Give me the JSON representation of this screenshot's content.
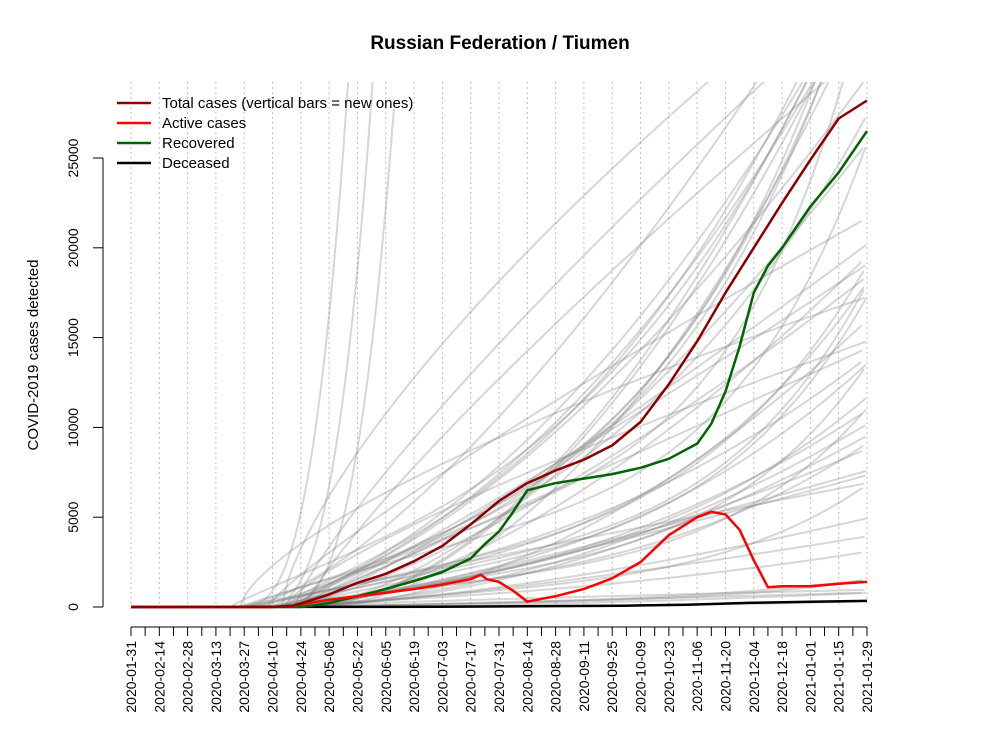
{
  "chart_data": {
    "type": "line",
    "title": "Russian Federation / Tiumen",
    "xlabel": "",
    "ylabel": "COVID-2019 cases detected",
    "x_range": [
      "2020-01-31",
      "2021-01-29"
    ],
    "ylim": [
      0,
      26000
    ],
    "y_ticks": [
      0,
      5000,
      10000,
      15000,
      20000,
      25000
    ],
    "x_tick_labels": [
      "2020-01-31",
      "2020-02-14",
      "2020-02-28",
      "2020-03-13",
      "2020-03-27",
      "2020-04-10",
      "2020-04-24",
      "2020-05-08",
      "2020-05-22",
      "2020-06-05",
      "2020-06-19",
      "2020-07-03",
      "2020-07-17",
      "2020-07-31",
      "2020-08-14",
      "2020-08-28",
      "2020-09-11",
      "2020-09-25",
      "2020-10-09",
      "2020-10-23",
      "2020-11-06",
      "2020-11-20",
      "2020-12-04",
      "2020-12-18",
      "2021-01-01",
      "2021-01-15",
      "2021-01-29"
    ],
    "grid": "vertical dotted lines",
    "legend_position": "top-left",
    "series": [
      {
        "name": "Total cases (vertical bars = new ones)",
        "color": "#8b0000",
        "points": [
          [
            "2020-01-31",
            0
          ],
          [
            "2020-04-10",
            0
          ],
          [
            "2020-04-20",
            80
          ],
          [
            "2020-04-24",
            200
          ],
          [
            "2020-05-08",
            700
          ],
          [
            "2020-05-22",
            1350
          ],
          [
            "2020-06-05",
            1850
          ],
          [
            "2020-06-19",
            2550
          ],
          [
            "2020-07-03",
            3400
          ],
          [
            "2020-07-17",
            4600
          ],
          [
            "2020-07-31",
            5900
          ],
          [
            "2020-08-14",
            6900
          ],
          [
            "2020-08-28",
            7600
          ],
          [
            "2020-09-11",
            8200
          ],
          [
            "2020-09-25",
            9000
          ],
          [
            "2020-10-09",
            10300
          ],
          [
            "2020-10-23",
            12400
          ],
          [
            "2020-11-06",
            14800
          ],
          [
            "2020-11-20",
            17500
          ],
          [
            "2020-12-04",
            20000
          ],
          [
            "2020-12-18",
            22500
          ],
          [
            "2021-01-01",
            24900
          ],
          [
            "2021-01-15",
            27200
          ],
          [
            "2021-01-29",
            28200
          ]
        ]
      },
      {
        "name": "Active cases",
        "color": "#ff0000",
        "points": [
          [
            "2020-01-31",
            0
          ],
          [
            "2020-04-10",
            0
          ],
          [
            "2020-04-20",
            60
          ],
          [
            "2020-04-24",
            150
          ],
          [
            "2020-05-08",
            400
          ],
          [
            "2020-05-22",
            600
          ],
          [
            "2020-06-05",
            800
          ],
          [
            "2020-06-19",
            1000
          ],
          [
            "2020-07-03",
            1250
          ],
          [
            "2020-07-17",
            1550
          ],
          [
            "2020-07-22",
            1800
          ],
          [
            "2020-07-25",
            1550
          ],
          [
            "2020-07-31",
            1400
          ],
          [
            "2020-08-07",
            900
          ],
          [
            "2020-08-14",
            300
          ],
          [
            "2020-08-28",
            600
          ],
          [
            "2020-09-11",
            1000
          ],
          [
            "2020-09-25",
            1600
          ],
          [
            "2020-10-09",
            2500
          ],
          [
            "2020-10-23",
            4000
          ],
          [
            "2020-11-06",
            5000
          ],
          [
            "2020-11-13",
            5300
          ],
          [
            "2020-11-20",
            5150
          ],
          [
            "2020-11-27",
            4300
          ],
          [
            "2020-12-04",
            2600
          ],
          [
            "2020-12-11",
            1100
          ],
          [
            "2020-12-18",
            1150
          ],
          [
            "2021-01-01",
            1150
          ],
          [
            "2021-01-15",
            1300
          ],
          [
            "2021-01-29",
            1400
          ]
        ]
      },
      {
        "name": "Recovered",
        "color": "#006400",
        "points": [
          [
            "2020-01-31",
            0
          ],
          [
            "2020-04-24",
            0
          ],
          [
            "2020-05-01",
            100
          ],
          [
            "2020-05-08",
            220
          ],
          [
            "2020-05-22",
            600
          ],
          [
            "2020-06-05",
            1000
          ],
          [
            "2020-06-19",
            1450
          ],
          [
            "2020-07-03",
            1950
          ],
          [
            "2020-07-17",
            2700
          ],
          [
            "2020-07-24",
            3500
          ],
          [
            "2020-07-31",
            4200
          ],
          [
            "2020-08-07",
            5300
          ],
          [
            "2020-08-14",
            6500
          ],
          [
            "2020-08-28",
            6900
          ],
          [
            "2020-09-11",
            7150
          ],
          [
            "2020-09-25",
            7400
          ],
          [
            "2020-10-09",
            7750
          ],
          [
            "2020-10-23",
            8250
          ],
          [
            "2020-11-06",
            9100
          ],
          [
            "2020-11-13",
            10200
          ],
          [
            "2020-11-20",
            12000
          ],
          [
            "2020-11-27",
            14500
          ],
          [
            "2020-12-04",
            17500
          ],
          [
            "2020-12-11",
            19000
          ],
          [
            "2020-12-18",
            20000
          ],
          [
            "2021-01-01",
            22300
          ],
          [
            "2021-01-15",
            24200
          ],
          [
            "2021-01-29",
            26500
          ]
        ]
      },
      {
        "name": "Deceased",
        "color": "#000000",
        "points": [
          [
            "2020-01-31",
            0
          ],
          [
            "2020-07-01",
            10
          ],
          [
            "2020-08-14",
            40
          ],
          [
            "2020-10-01",
            70
          ],
          [
            "2020-11-01",
            130
          ],
          [
            "2020-12-01",
            230
          ],
          [
            "2021-01-01",
            290
          ],
          [
            "2021-01-29",
            340
          ]
        ]
      }
    ],
    "background_series_color": "#7f7f7f"
  }
}
